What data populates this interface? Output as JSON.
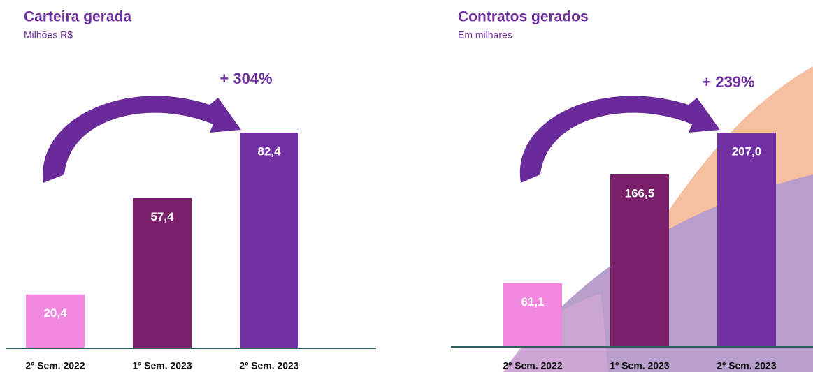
{
  "chart_data": [
    {
      "type": "bar",
      "title": "Carteira gerada",
      "subtitle": "Milhões R$",
      "categories": [
        "2º Sem. 2022",
        "1º Sem. 2023",
        "2º Sem. 2023"
      ],
      "values": [
        20.4,
        57.4,
        82.4
      ],
      "value_labels": [
        "20,4",
        "57,4",
        "82,4"
      ],
      "colors": [
        "#f088e0",
        "#7a1f6a",
        "#7030a0"
      ],
      "annotation": "+ 304%"
    },
    {
      "type": "bar",
      "title": "Contratos gerados",
      "subtitle": "Em milhares",
      "categories": [
        "2º Sem. 2022",
        "1º Sem. 2023",
        "2º Sem. 2023"
      ],
      "values": [
        61.1,
        166.5,
        207.0
      ],
      "value_labels": [
        "61,1",
        "166,5",
        "207,0"
      ],
      "colors": [
        "#f088e0",
        "#7a1f6a",
        "#7030a0"
      ],
      "annotation": "+ 239%"
    }
  ]
}
